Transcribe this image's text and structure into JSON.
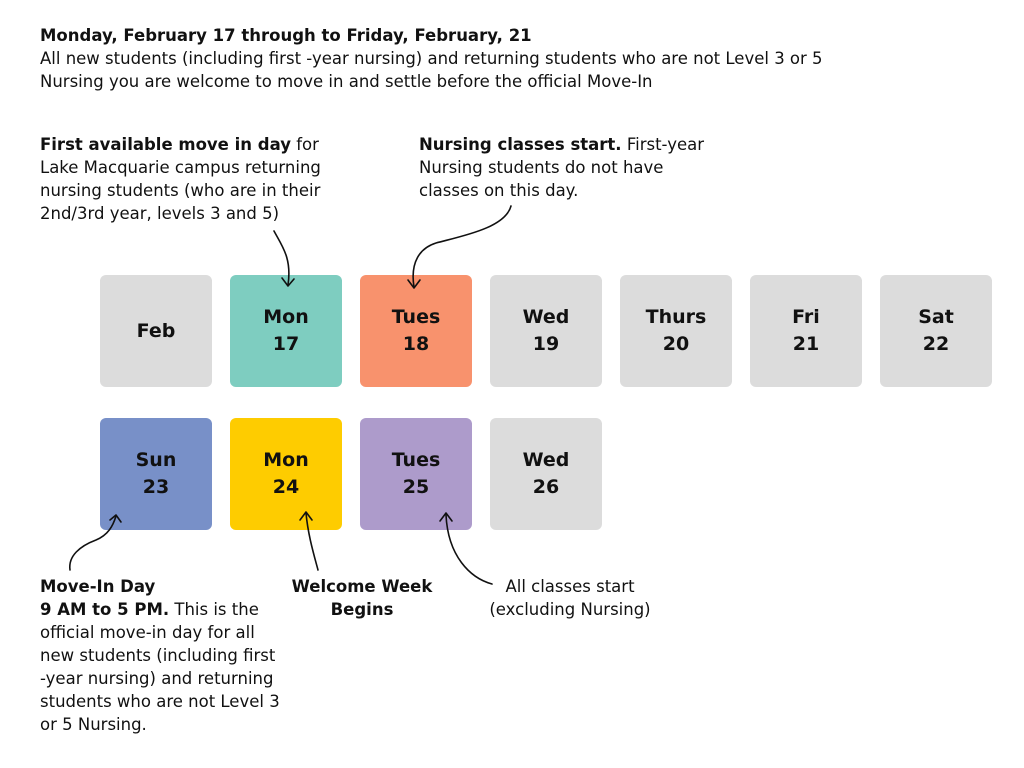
{
  "header": {
    "title": "Monday, February 17 through to Friday, February, 21",
    "line1": "All new students (including first -year nursing) and returning students who are not Level 3 or 5",
    "line2": "Nursing you are welcome to move in and settle before the official Move-In"
  },
  "notes": {
    "first_move_in": {
      "bold": "First available move in day",
      "rest1": " for",
      "line2": "Lake Macquarie campus returning",
      "line3": "nursing students (who are in their",
      "line4": "2nd/3rd year, levels 3 and 5)"
    },
    "nursing_classes": {
      "bold": "Nursing classes start.",
      "rest1": " First-year",
      "line2": "Nursing students do not have",
      "line3": "classes on this day."
    },
    "move_in_day": {
      "bold1": "Move-In Day",
      "bold2": "9 AM to 5 PM.",
      "rest2": " This is the",
      "line3": "official move-in day for all",
      "line4": "new students (including first",
      "line5": "-year nursing) and returning",
      "line6": "students who are not Level 3",
      "line7": "or 5 Nursing."
    },
    "welcome_week": {
      "line1": "Welcome Week",
      "line2": "Begins"
    },
    "all_classes": {
      "line1": "All classes start",
      "line2": "(excluding Nursing)"
    }
  },
  "calendar": {
    "row1": [
      {
        "day": "Feb",
        "num": "",
        "color": "#dcdcdc"
      },
      {
        "day": "Mon",
        "num": "17",
        "color": "#7ecdc0"
      },
      {
        "day": "Tues",
        "num": "18",
        "color": "#f8926d"
      },
      {
        "day": "Wed",
        "num": "19",
        "color": "#dcdcdc"
      },
      {
        "day": "Thurs",
        "num": "20",
        "color": "#dcdcdc"
      },
      {
        "day": "Fri",
        "num": "21",
        "color": "#dcdcdc"
      },
      {
        "day": "Sat",
        "num": "22",
        "color": "#dcdcdc"
      }
    ],
    "row2": [
      {
        "day": "Sun",
        "num": "23",
        "color": "#7890c8"
      },
      {
        "day": "Mon",
        "num": "24",
        "color": "#fecc00"
      },
      {
        "day": "Tues",
        "num": "25",
        "color": "#ad9bcb"
      },
      {
        "day": "Wed",
        "num": "26",
        "color": "#dcdcdc"
      }
    ]
  }
}
